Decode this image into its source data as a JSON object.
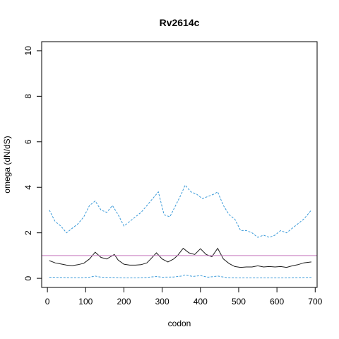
{
  "chart_data": {
    "type": "line",
    "title": "Rv2614c",
    "xlabel": "codon",
    "ylabel": "omega (dN/dS)",
    "xlim": [
      -15,
      705
    ],
    "ylim": [
      -0.4,
      10.4
    ],
    "xticks": [
      0,
      100,
      200,
      300,
      400,
      500,
      600,
      700
    ],
    "yticks": [
      0,
      2,
      4,
      6,
      8,
      10
    ],
    "grid": false,
    "legend": "none",
    "reference_line": {
      "y": 1,
      "color": "#c67bbf"
    },
    "series": [
      {
        "color": "#3a9ad9",
        "style": "dashed",
        "x": [
          5,
          20,
          35,
          50,
          65,
          80,
          95,
          110,
          125,
          140,
          155,
          170,
          185,
          200,
          215,
          230,
          245,
          260,
          275,
          290,
          305,
          320,
          335,
          350,
          360,
          375,
          390,
          405,
          420,
          435,
          445,
          460,
          475,
          490,
          505,
          520,
          535,
          550,
          565,
          580,
          595,
          610,
          625,
          640,
          655,
          670,
          685,
          690
        ],
        "values": [
          3.0,
          2.5,
          2.3,
          2.0,
          2.2,
          2.4,
          2.7,
          3.2,
          3.4,
          3.0,
          2.9,
          3.2,
          2.8,
          2.3,
          2.5,
          2.7,
          2.9,
          3.2,
          3.5,
          3.8,
          2.8,
          2.7,
          3.2,
          3.7,
          4.1,
          3.8,
          3.7,
          3.5,
          3.6,
          3.7,
          3.8,
          3.2,
          2.8,
          2.6,
          2.1,
          2.1,
          2.0,
          1.8,
          1.9,
          1.8,
          1.9,
          2.1,
          2.0,
          2.2,
          2.4,
          2.6,
          2.9,
          3.0
        ]
      },
      {
        "color": "#1a1a1a",
        "style": "solid",
        "x": [
          5,
          20,
          35,
          50,
          65,
          80,
          95,
          110,
          125,
          140,
          155,
          165,
          175,
          185,
          200,
          215,
          230,
          245,
          260,
          270,
          285,
          300,
          315,
          330,
          340,
          355,
          370,
          385,
          400,
          415,
          430,
          445,
          460,
          475,
          490,
          505,
          520,
          535,
          550,
          565,
          580,
          595,
          610,
          625,
          640,
          655,
          670,
          690
        ],
        "values": [
          0.78,
          0.68,
          0.63,
          0.58,
          0.56,
          0.6,
          0.66,
          0.85,
          1.15,
          0.92,
          0.85,
          0.95,
          1.05,
          0.8,
          0.62,
          0.58,
          0.58,
          0.6,
          0.68,
          0.85,
          1.12,
          0.85,
          0.72,
          0.85,
          1.0,
          1.32,
          1.12,
          1.05,
          1.3,
          1.05,
          0.95,
          1.32,
          0.85,
          0.65,
          0.52,
          0.48,
          0.5,
          0.5,
          0.55,
          0.5,
          0.52,
          0.5,
          0.52,
          0.48,
          0.55,
          0.6,
          0.68,
          0.72
        ]
      },
      {
        "color": "#3a9ad9",
        "style": "dashed",
        "x": [
          5,
          30,
          60,
          90,
          110,
          125,
          140,
          170,
          200,
          230,
          260,
          285,
          300,
          330,
          350,
          360,
          380,
          400,
          420,
          445,
          470,
          500,
          530,
          560,
          590,
          620,
          650,
          690
        ],
        "values": [
          0.05,
          0.04,
          0.03,
          0.03,
          0.05,
          0.1,
          0.05,
          0.04,
          0.02,
          0.02,
          0.04,
          0.08,
          0.05,
          0.06,
          0.1,
          0.15,
          0.08,
          0.12,
          0.05,
          0.1,
          0.03,
          0.02,
          0.02,
          0.02,
          0.02,
          0.02,
          0.03,
          0.04
        ]
      }
    ]
  }
}
